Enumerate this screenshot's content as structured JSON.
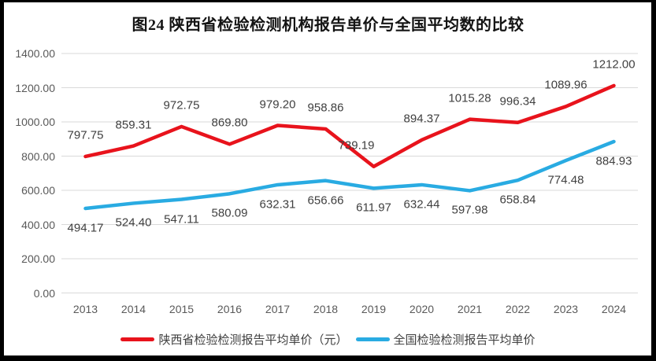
{
  "chart_data": {
    "type": "line",
    "title": "图24 陕西省检验检测机构报告单价与全国平均数的比较",
    "categories": [
      "2013",
      "2014",
      "2015",
      "2016",
      "2017",
      "2018",
      "2019",
      "2020",
      "2021",
      "2022",
      "2023",
      "2024"
    ],
    "series": [
      {
        "name": "陕西省检验检测报告平均单价（元）",
        "color": "#e8131c",
        "label_position": "above",
        "values": [
          797.75,
          859.31,
          972.75,
          869.8,
          979.2,
          958.86,
          739.19,
          894.37,
          1015.28,
          996.34,
          1089.96,
          1212.0
        ]
      },
      {
        "name": "全国检验检测报告平均单价",
        "color": "#29abe2",
        "label_position": "below",
        "values": [
          494.17,
          524.4,
          547.11,
          580.09,
          632.31,
          656.66,
          611.97,
          632.44,
          597.98,
          658.84,
          774.48,
          884.93
        ]
      }
    ],
    "y_axis": {
      "min": 0,
      "max": 1400,
      "step": 200,
      "tick_labels": [
        "0.00",
        "200.00",
        "400.00",
        "600.00",
        "800.00",
        "1000.00",
        "1200.00",
        "1400.00"
      ]
    },
    "x_axis_label": "",
    "y_axis_label": "",
    "grid": true,
    "legend_position": "bottom"
  },
  "colors": {
    "grid": "#d9d9d9",
    "axis_text": "#595959",
    "data_label_text": "#3f3f3f",
    "frame": "#000000",
    "background": "#ffffff"
  }
}
